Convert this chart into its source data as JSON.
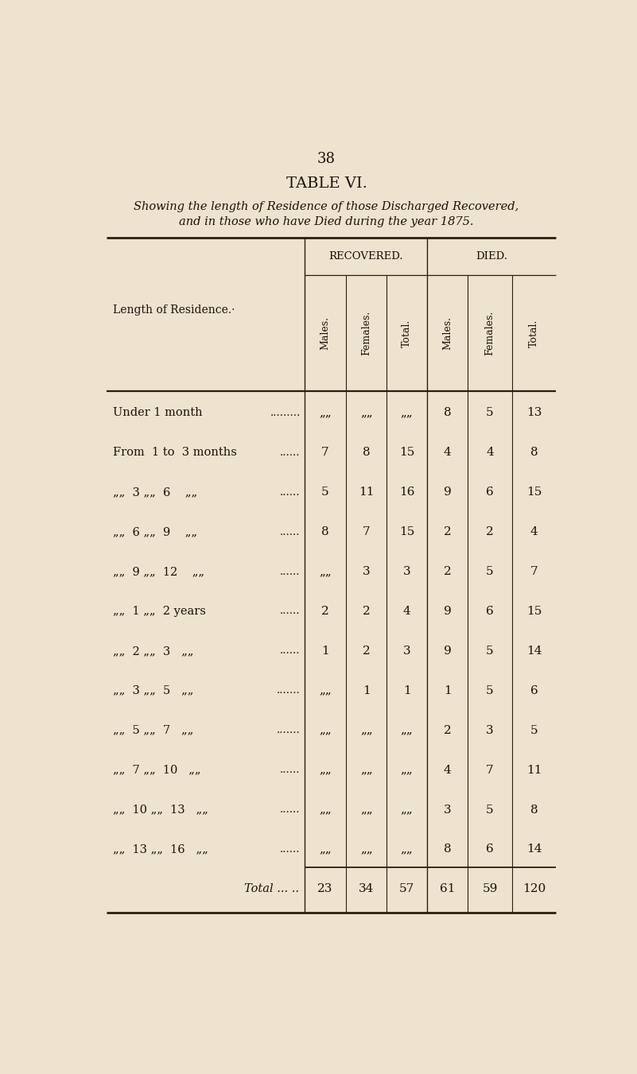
{
  "page_number": "38",
  "title": "TABLE VI.",
  "subtitle_line1": "Showing the length of Residence of those Discharged Recovered,",
  "subtitle_line2": "and in those who have Died during the year 1875.",
  "col_header_group1": "RECOVERED.",
  "col_header_group2": "DIED.",
  "col_headers": [
    "Males.",
    "Females.",
    "Total.",
    "Males.",
    "Females.",
    "Total."
  ],
  "row_header": "Length of Residence.·",
  "rows": [
    {
      "label_parts": [
        "Under 1 month"
      ],
      "label_type": "under",
      "dots": ".........",
      "rec_m": "„„",
      "rec_f": "„„",
      "rec_t": "„„",
      "die_m": "8",
      "die_f": "5",
      "die_t": "13"
    },
    {
      "label_parts": [
        "From",
        "1 to",
        "3 months"
      ],
      "label_type": "from",
      "dots": "......",
      "rec_m": "7",
      "rec_f": "8",
      "rec_t": "15",
      "die_m": "4",
      "die_f": "4",
      "die_t": "8"
    },
    {
      "label_parts": [
        "„„",
        "3 „„",
        "6",
        "„„"
      ],
      "label_type": "range_months",
      "dots": "......",
      "rec_m": "5",
      "rec_f": "11",
      "rec_t": "16",
      "die_m": "9",
      "die_f": "6",
      "die_t": "15"
    },
    {
      "label_parts": [
        "„„",
        "6 „„",
        "9",
        "„„"
      ],
      "label_type": "range_months",
      "dots": "......",
      "rec_m": "8",
      "rec_f": "7",
      "rec_t": "15",
      "die_m": "2",
      "die_f": "2",
      "die_t": "4"
    },
    {
      "label_parts": [
        "„„",
        "9 „„",
        "12",
        "„„"
      ],
      "label_type": "range_months",
      "dots": "......",
      "rec_m": "„„",
      "rec_f": "3",
      "rec_t": "3",
      "die_m": "2",
      "die_f": "5",
      "die_t": "7"
    },
    {
      "label_parts": [
        "„„",
        "1 „„",
        "2 years"
      ],
      "label_type": "range_years",
      "dots": "......",
      "rec_m": "2",
      "rec_f": "2",
      "rec_t": "4",
      "die_m": "9",
      "die_f": "6",
      "die_t": "15"
    },
    {
      "label_parts": [
        "„„",
        "2 „„",
        "3",
        "„„"
      ],
      "label_type": "range_years2",
      "dots": "......",
      "rec_m": "1",
      "rec_f": "2",
      "rec_t": "3",
      "die_m": "9",
      "die_f": "5",
      "die_t": "14"
    },
    {
      "label_parts": [
        "„„",
        "3 „„",
        "5",
        "„„"
      ],
      "label_type": "range_years2",
      "dots": ".......",
      "rec_m": "„„",
      "rec_f": "1",
      "rec_t": "1",
      "die_m": "1",
      "die_f": "5",
      "die_t": "6"
    },
    {
      "label_parts": [
        "„„",
        "5 „„",
        "7",
        "„„"
      ],
      "label_type": "range_years2",
      "dots": ".......",
      "rec_m": "„„",
      "rec_f": "„„",
      "rec_t": "„„",
      "die_m": "2",
      "die_f": "3",
      "die_t": "5"
    },
    {
      "label_parts": [
        "„„",
        "7 „„",
        "10",
        "„„"
      ],
      "label_type": "range_years2",
      "dots": "......",
      "rec_m": "„„",
      "rec_f": "„„",
      "rec_t": "„„",
      "die_m": "4",
      "die_f": "7",
      "die_t": "11"
    },
    {
      "label_parts": [
        "„„",
        "10 „„",
        "13",
        "„„"
      ],
      "label_type": "range_years2",
      "dots": "......",
      "rec_m": "„„",
      "rec_f": "„„",
      "rec_t": "„„",
      "die_m": "3",
      "die_f": "5",
      "die_t": "8"
    },
    {
      "label_parts": [
        "„„",
        "13 „„",
        "16",
        "„„"
      ],
      "label_type": "range_years2",
      "dots": "......",
      "rec_m": "„„",
      "rec_f": "„„",
      "rec_t": "„„",
      "die_m": "8",
      "die_f": "6",
      "die_t": "14"
    }
  ],
  "total_row": {
    "rec_m": "23",
    "rec_f": "34",
    "rec_t": "57",
    "die_m": "61",
    "die_f": "59",
    "die_t": "120"
  },
  "bg_color": "#ede3ce",
  "text_color": "#1a1208",
  "line_color": "#2a1e0e"
}
